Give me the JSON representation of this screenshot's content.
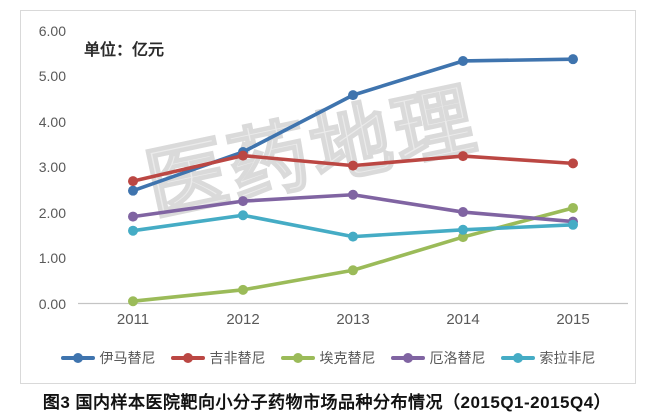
{
  "watermark": "医药地理",
  "caption": "图3 国内样本医院靶向小分子药物市场品种分布情况（2015Q1-2015Q4）",
  "chart_data": {
    "type": "line",
    "title": "国内样本医院靶向小分子药物市场品种分布情况（2015Q1-2015Q4）",
    "unit_label": "单位：亿元",
    "xlabel": "",
    "ylabel": "亿元",
    "categories": [
      "2011",
      "2012",
      "2013",
      "2014",
      "2015"
    ],
    "series": [
      {
        "name": "伊马替尼",
        "color": "#3F74AE",
        "values": [
          2.48,
          3.33,
          4.58,
          5.33,
          5.37
        ]
      },
      {
        "name": "吉非替尼",
        "color": "#BB4743",
        "values": [
          2.69,
          3.25,
          3.03,
          3.24,
          3.08
        ]
      },
      {
        "name": "埃克替尼",
        "color": "#9BBB59",
        "values": [
          0.05,
          0.3,
          0.73,
          1.46,
          2.1
        ]
      },
      {
        "name": "厄洛替尼",
        "color": "#8064A2",
        "values": [
          1.91,
          2.25,
          2.39,
          2.01,
          1.8
        ]
      },
      {
        "name": "索拉非尼",
        "color": "#45ACC5",
        "values": [
          1.6,
          1.94,
          1.47,
          1.62,
          1.73
        ]
      }
    ],
    "y_ticks": [
      "0.00",
      "1.00",
      "2.00",
      "3.00",
      "4.00",
      "5.00",
      "6.00"
    ],
    "ylim": [
      0,
      6
    ],
    "grid": false,
    "legend_position": "bottom",
    "axis_color": "#c4c4c4"
  }
}
